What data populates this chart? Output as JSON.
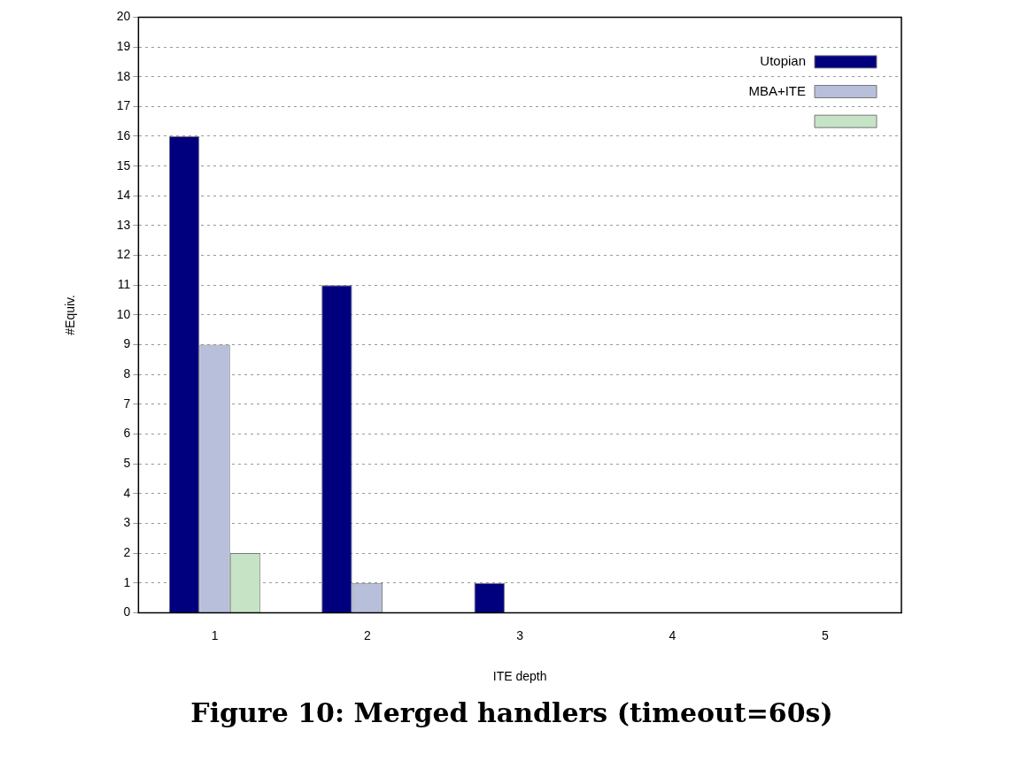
{
  "chart_data": {
    "type": "bar",
    "title": "Figure 10: Merged handlers (timeout=60s)",
    "xlabel": "ITE depth",
    "ylabel": "#Equiv.",
    "categories": [
      "1",
      "2",
      "3",
      "4",
      "5"
    ],
    "series": [
      {
        "name": "Utopian",
        "color": "#00007f",
        "values": [
          16,
          11,
          1,
          0,
          0
        ]
      },
      {
        "name": "MBA+ITE",
        "color": "#b8bfdb",
        "values": [
          9,
          1,
          0,
          0,
          0
        ]
      },
      {
        "color": "#c6e3c6",
        "values": [
          2,
          0,
          0,
          0,
          0
        ]
      }
    ],
    "ylim": [
      0,
      20
    ],
    "yticks": [
      0,
      1,
      2,
      3,
      4,
      5,
      6,
      7,
      8,
      9,
      10,
      11,
      12,
      13,
      14,
      15,
      16,
      17,
      18,
      19,
      20
    ],
    "grid": "y",
    "line_style": "dashed",
    "legend": "top right"
  }
}
